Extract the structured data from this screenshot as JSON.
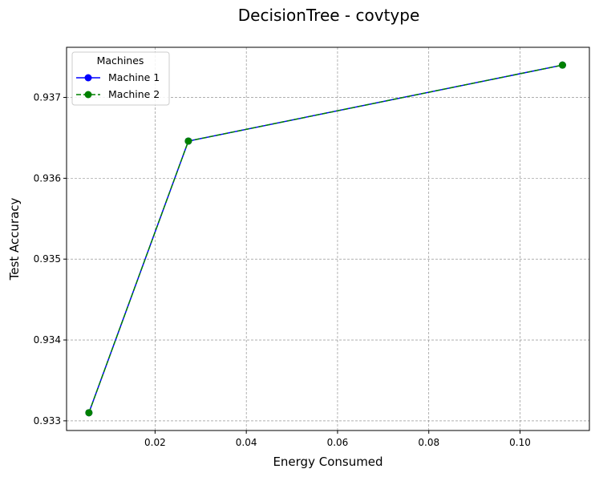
{
  "chart_data": {
    "type": "line",
    "title": "DecisionTree - covtype",
    "xlabel": "Energy Consumed",
    "ylabel": "Test Accuracy",
    "xlim": [
      0.0006,
      0.1152
    ],
    "ylim": [
      0.93288,
      0.93762
    ],
    "xticks": [
      0.02,
      0.04,
      0.06,
      0.08,
      0.1
    ],
    "xtick_labels": [
      "0.02",
      "0.04",
      "0.06",
      "0.08",
      "0.10"
    ],
    "yticks": [
      0.933,
      0.934,
      0.935,
      0.936,
      0.937
    ],
    "ytick_labels": [
      "0.933",
      "0.934",
      "0.935",
      "0.936",
      "0.937"
    ],
    "grid": true,
    "legend": {
      "title": "Machines",
      "position": "top-left"
    },
    "series": [
      {
        "name": "Machine 1",
        "color": "#0000ff",
        "linestyle": "solid",
        "marker": "circle",
        "x": [
          0.0055,
          0.0273,
          0.1093
        ],
        "y": [
          0.9331,
          0.93646,
          0.9374
        ]
      },
      {
        "name": "Machine 2",
        "color": "#008000",
        "linestyle": "dashed",
        "marker": "circle",
        "x": [
          0.0055,
          0.0273,
          0.1093
        ],
        "y": [
          0.9331,
          0.93646,
          0.9374
        ]
      }
    ]
  }
}
